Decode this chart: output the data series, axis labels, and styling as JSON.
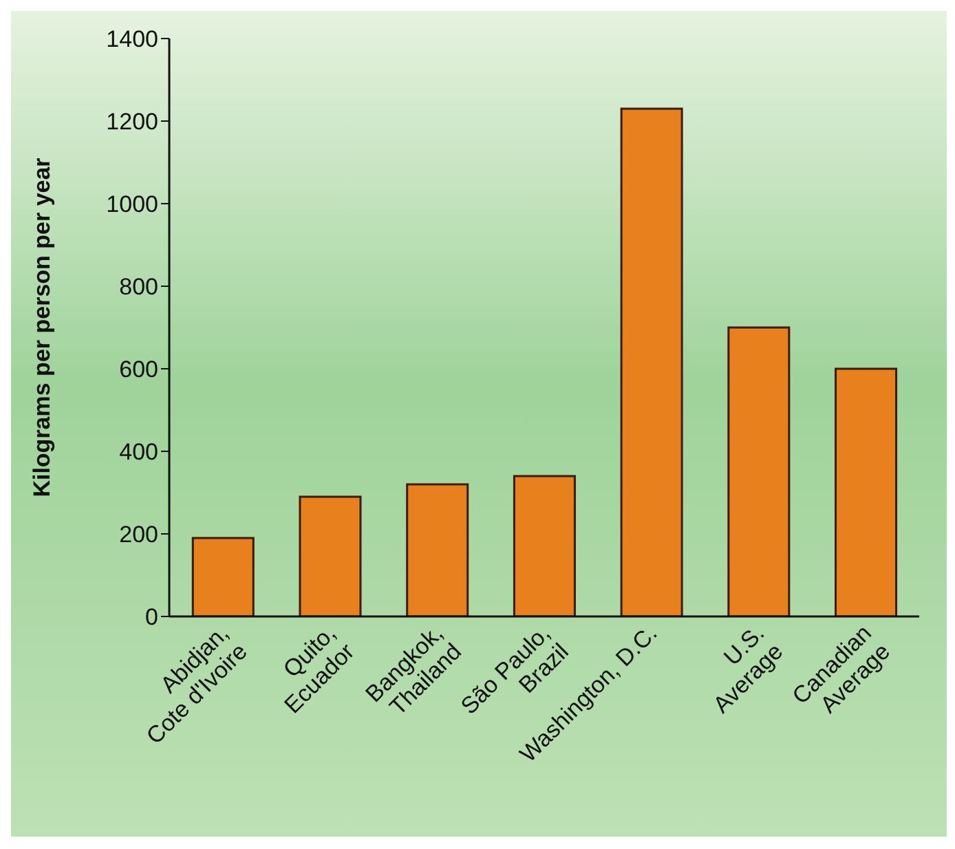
{
  "chart_data": {
    "type": "bar",
    "ylabel": "Kilograms per person per year",
    "categories": [
      "Abidjan,\nCote d'Ivoire",
      "Quito,\nEcuador",
      "Bangkok,\nThailand",
      "São Paulo,\nBrazil",
      "Washington, D.C.",
      "U.S.\nAverage",
      "Canadian\nAverage"
    ],
    "values": [
      190,
      290,
      320,
      340,
      1230,
      700,
      600
    ],
    "color": "#e8801e",
    "ylim": [
      0,
      1400
    ],
    "yticks": [
      0,
      200,
      400,
      600,
      800,
      1000,
      1200,
      1400
    ],
    "grid": false
  }
}
